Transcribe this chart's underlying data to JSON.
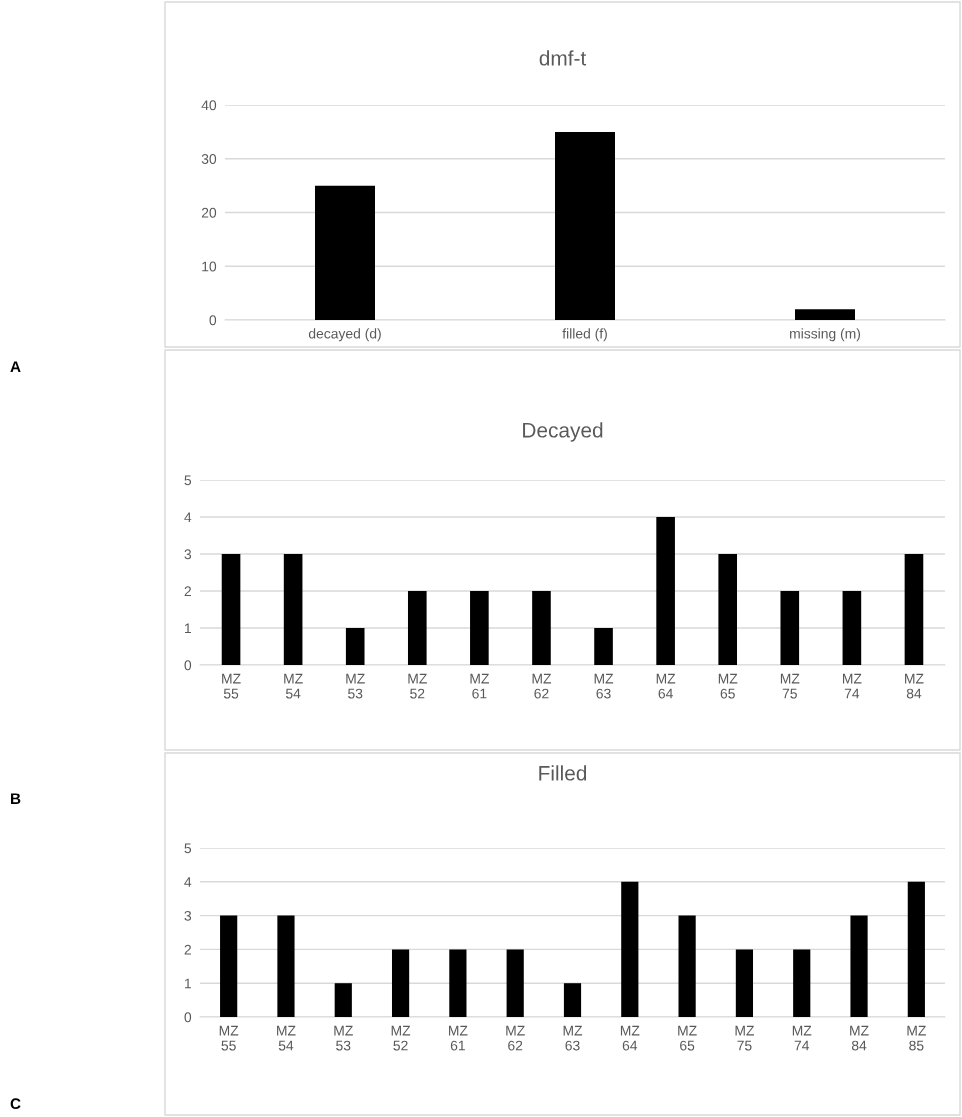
{
  "chart_data": [
    {
      "type": "bar",
      "title": "dmf-t",
      "categories": [
        "decayed (d)",
        "filled (f)",
        "missing (m)"
      ],
      "values": [
        25,
        35,
        2
      ],
      "color": "#000000",
      "ylim": [
        0,
        40
      ],
      "yticks": [
        0,
        10,
        20,
        30,
        40
      ],
      "grid": "y",
      "annotations": [
        "A"
      ]
    },
    {
      "type": "bar",
      "title": "Decayed",
      "categories": [
        "MZ 55",
        "MZ 54",
        "MZ 53",
        "MZ 52",
        "MZ 61",
        "MZ 62",
        "MZ 63",
        "MZ 64",
        "MZ 65",
        "MZ 75",
        "MZ 74",
        "MZ 84"
      ],
      "values": [
        3,
        3,
        1,
        2,
        2,
        2,
        1,
        4,
        3,
        2,
        2,
        3
      ],
      "color": "#000000",
      "ylim": [
        0,
        5
      ],
      "yticks": [
        0,
        1,
        2,
        3,
        4,
        5
      ],
      "grid": "y",
      "annotations": [
        "B"
      ]
    },
    {
      "type": "bar",
      "title": "Filled",
      "categories": [
        "MZ 55",
        "MZ 54",
        "MZ 53",
        "MZ 52",
        "MZ 61",
        "MZ 62",
        "MZ 63",
        "MZ 64",
        "MZ 65",
        "MZ 75",
        "MZ 74",
        "MZ 84",
        "MZ 85"
      ],
      "values": [
        3,
        3,
        1,
        2,
        2,
        2,
        1,
        4,
        3,
        2,
        2,
        3,
        4
      ],
      "color": "#000000",
      "ylim": [
        0,
        5
      ],
      "yticks": [
        0,
        1,
        2,
        3,
        4,
        5
      ],
      "grid": "y",
      "annotations": [
        "C"
      ]
    }
  ]
}
